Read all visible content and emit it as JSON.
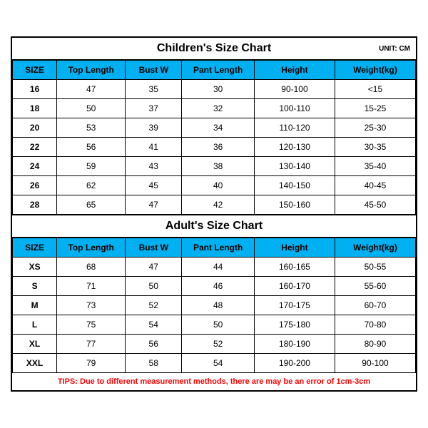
{
  "unit_label": "UNIT: CM",
  "columns": [
    "SIZE",
    "Top Length",
    "Bust W",
    "Pant Length",
    "Height",
    "Weight(kg)"
  ],
  "children": {
    "title": "Children's Size Chart",
    "rows": [
      [
        "16",
        "47",
        "35",
        "30",
        "90-100",
        "<15"
      ],
      [
        "18",
        "50",
        "37",
        "32",
        "100-110",
        "15-25"
      ],
      [
        "20",
        "53",
        "39",
        "34",
        "110-120",
        "25-30"
      ],
      [
        "22",
        "56",
        "41",
        "36",
        "120-130",
        "30-35"
      ],
      [
        "24",
        "59",
        "43",
        "38",
        "130-140",
        "35-40"
      ],
      [
        "26",
        "62",
        "45",
        "40",
        "140-150",
        "40-45"
      ],
      [
        "28",
        "65",
        "47",
        "42",
        "150-160",
        "45-50"
      ]
    ]
  },
  "adult": {
    "title": "Adult's Size Chart",
    "rows": [
      [
        "XS",
        "68",
        "47",
        "44",
        "160-165",
        "50-55"
      ],
      [
        "S",
        "71",
        "50",
        "46",
        "160-170",
        "55-60"
      ],
      [
        "M",
        "73",
        "52",
        "48",
        "170-175",
        "60-70"
      ],
      [
        "L",
        "75",
        "54",
        "50",
        "175-180",
        "70-80"
      ],
      [
        "XL",
        "77",
        "56",
        "52",
        "180-190",
        "80-90"
      ],
      [
        "XXL",
        "79",
        "58",
        "54",
        "190-200",
        "90-100"
      ]
    ]
  },
  "tips": "TIPS: Due to different measurement methods, there are may be an error of 1cm-3cm",
  "colors": {
    "header_bg": "#00b0f0",
    "border": "#000000",
    "tips_text": "#ff0000",
    "background": "#ffffff"
  }
}
